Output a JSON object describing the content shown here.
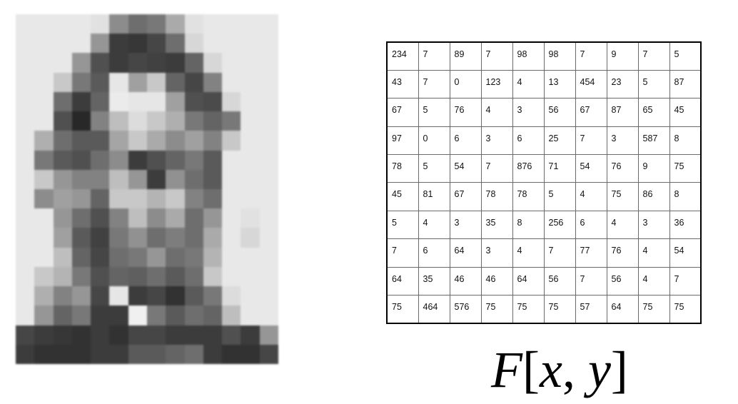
{
  "pixel_image": {
    "rows": [
      [
        232,
        232,
        232,
        232,
        225,
        140,
        110,
        120,
        170,
        225,
        232,
        232,
        232,
        232
      ],
      [
        232,
        232,
        232,
        232,
        150,
        60,
        55,
        70,
        110,
        215,
        232,
        232,
        232,
        232
      ],
      [
        232,
        232,
        232,
        150,
        80,
        60,
        70,
        65,
        60,
        100,
        215,
        232,
        232,
        232
      ],
      [
        232,
        232,
        200,
        120,
        90,
        230,
        160,
        200,
        100,
        70,
        130,
        232,
        232,
        232
      ],
      [
        232,
        232,
        110,
        60,
        100,
        235,
        230,
        230,
        160,
        80,
        75,
        215,
        232,
        232
      ],
      [
        232,
        232,
        80,
        40,
        130,
        190,
        220,
        200,
        175,
        120,
        100,
        120,
        232,
        232
      ],
      [
        232,
        175,
        110,
        90,
        90,
        165,
        200,
        170,
        140,
        160,
        130,
        200,
        232,
        232
      ],
      [
        232,
        120,
        90,
        80,
        110,
        140,
        60,
        80,
        100,
        120,
        90,
        232,
        232,
        232
      ],
      [
        232,
        200,
        150,
        130,
        130,
        190,
        150,
        60,
        145,
        110,
        90,
        232,
        232,
        232
      ],
      [
        232,
        140,
        160,
        150,
        100,
        200,
        200,
        180,
        200,
        130,
        110,
        232,
        232,
        232
      ],
      [
        232,
        232,
        150,
        110,
        80,
        130,
        190,
        140,
        170,
        110,
        150,
        232,
        225,
        232
      ],
      [
        232,
        232,
        160,
        90,
        65,
        120,
        145,
        110,
        125,
        110,
        170,
        232,
        215,
        232
      ],
      [
        232,
        232,
        190,
        100,
        70,
        110,
        120,
        150,
        110,
        120,
        180,
        232,
        232,
        232
      ],
      [
        232,
        200,
        180,
        120,
        80,
        100,
        95,
        110,
        90,
        110,
        200,
        232,
        232,
        232
      ],
      [
        232,
        175,
        130,
        150,
        70,
        230,
        60,
        70,
        50,
        90,
        120,
        220,
        232,
        232
      ],
      [
        232,
        150,
        100,
        120,
        60,
        60,
        240,
        120,
        90,
        110,
        100,
        190,
        232,
        232
      ],
      [
        70,
        60,
        55,
        50,
        60,
        50,
        70,
        70,
        60,
        60,
        60,
        80,
        60,
        150
      ],
      [
        60,
        50,
        50,
        50,
        60,
        60,
        90,
        90,
        100,
        110,
        60,
        50,
        50,
        70
      ]
    ]
  },
  "matrix": {
    "rows": [
      [
        "234",
        "7",
        "89",
        "7",
        "98",
        "98",
        "7",
        "9",
        "7",
        "5"
      ],
      [
        "43",
        "7",
        "0",
        "123",
        "4",
        "13",
        "454",
        "23",
        "5",
        "87"
      ],
      [
        "67",
        "5",
        "76",
        "4",
        "3",
        "56",
        "67",
        "87",
        "65",
        "45"
      ],
      [
        "97",
        "0",
        "6",
        "3",
        "6",
        "25",
        "7",
        "3",
        "587",
        "8"
      ],
      [
        "78",
        "5",
        "54",
        "7",
        "876",
        "71",
        "54",
        "76",
        "9",
        "75"
      ],
      [
        "45",
        "81",
        "67",
        "78",
        "78",
        "5",
        "4",
        "75",
        "86",
        "8"
      ],
      [
        "5",
        "4",
        "3",
        "35",
        "8",
        "256",
        "6",
        "4",
        "3",
        "36"
      ],
      [
        "7",
        "6",
        "64",
        "3",
        "4",
        "7",
        "77",
        "76",
        "4",
        "54"
      ],
      [
        "64",
        "35",
        "46",
        "46",
        "64",
        "56",
        "7",
        "56",
        "4",
        "7"
      ],
      [
        "75",
        "464",
        "576",
        "75",
        "75",
        "75",
        "57",
        "64",
        "75",
        "75"
      ]
    ]
  },
  "label": {
    "func": "F",
    "open": "[",
    "x": "x",
    "comma": ", ",
    "y": "y",
    "close": "]"
  }
}
